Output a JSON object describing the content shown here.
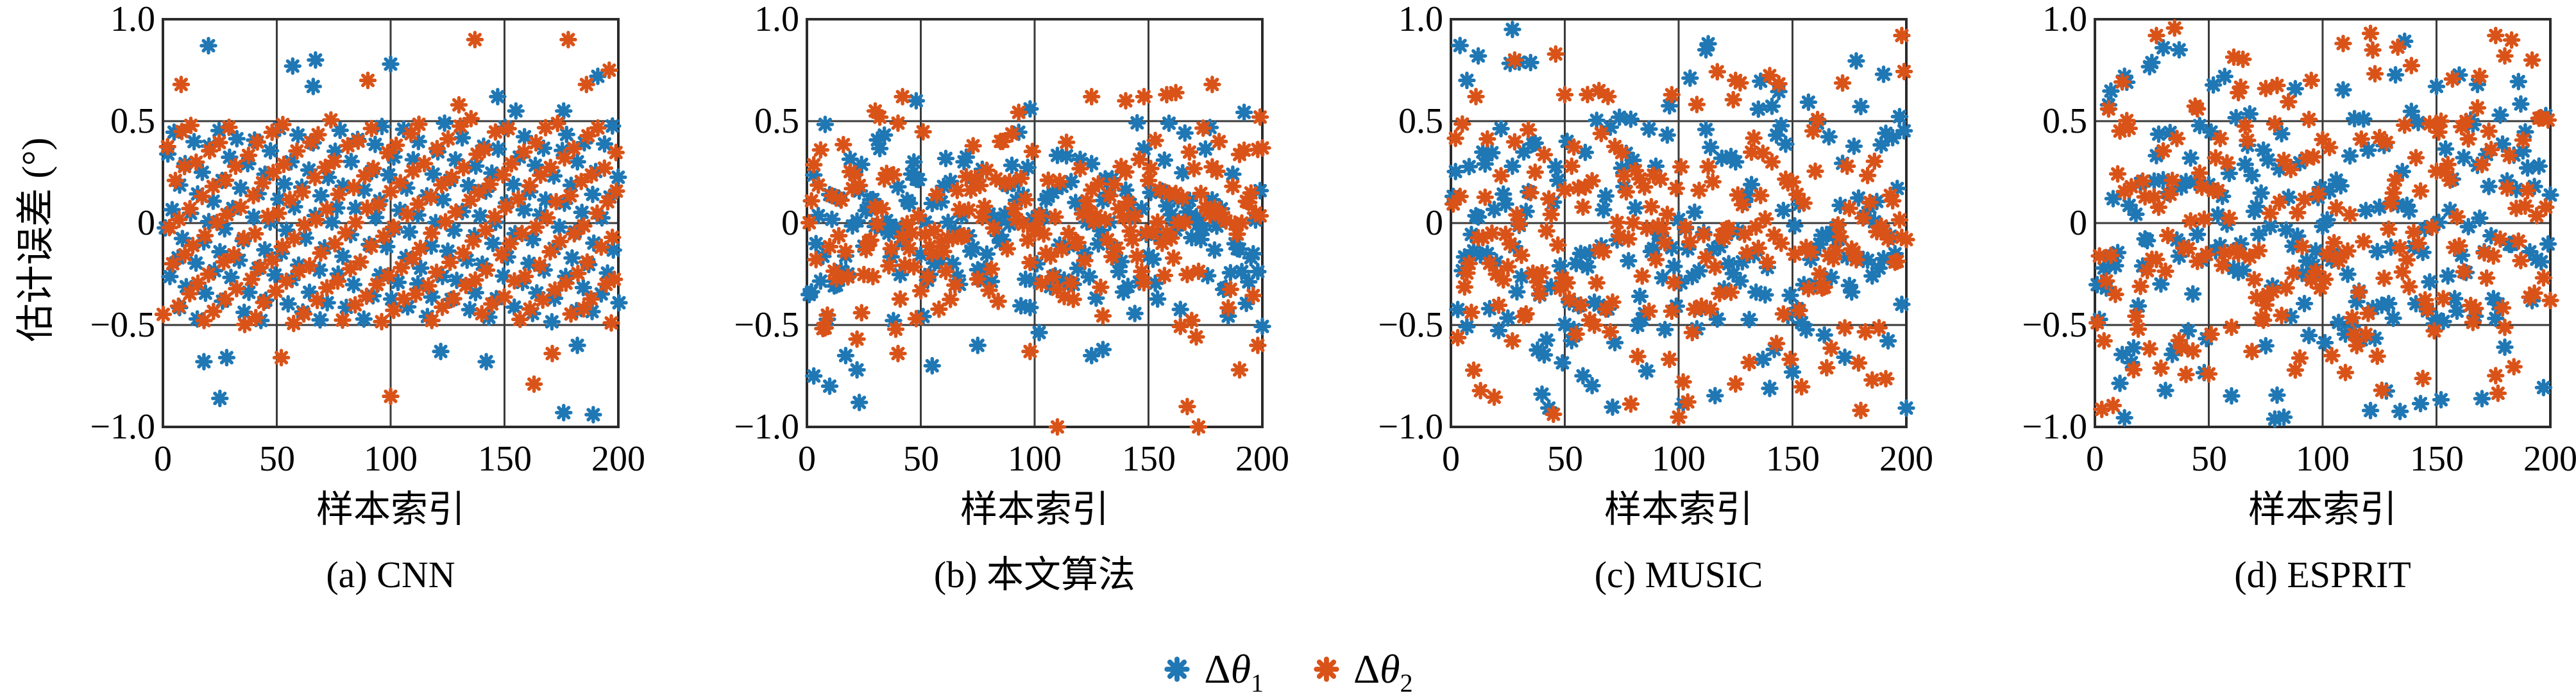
{
  "figure": {
    "ylabel": "估计误差 (°)",
    "background": "#ffffff",
    "colors": {
      "series1": "#1f77b4",
      "series2": "#d95319",
      "grid": "#3a3a3a",
      "frame": "#2b2b2b",
      "text": "#000000"
    },
    "legend": {
      "items": [
        {
          "prefix": "Δ",
          "symbol": "θ",
          "sub": "1",
          "color": "#1f77b4",
          "marker": "asterisk-icon"
        },
        {
          "prefix": "Δ",
          "symbol": "θ",
          "sub": "2",
          "color": "#d95319",
          "marker": "asterisk-icon"
        }
      ]
    }
  },
  "chart_data": [
    {
      "type": "scatter",
      "caption": "(a) CNN",
      "xlabel": "样本索引",
      "ylabel": "估计误差 (°)",
      "xlim": [
        0,
        200
      ],
      "ylim": [
        -1,
        1
      ],
      "grid": true,
      "xticks": [
        0,
        50,
        100,
        150,
        200
      ],
      "yticks": [
        1.0,
        0.5,
        0,
        -0.5,
        -1.0
      ],
      "xtick_labels": [
        "0",
        "50",
        "100",
        "150",
        "200"
      ],
      "ytick_labels": [
        "1.0",
        "0.5",
        "0",
        "−0.5",
        "−1.0"
      ],
      "series": [
        {
          "name": "Δθ1",
          "color": "#1f77b4",
          "n": 200,
          "seed": 11,
          "distribution": {
            "kind": "lattice",
            "min": -0.48,
            "max": 0.49,
            "step": 0.37,
            "phase": 0.1,
            "jitter": 0.02,
            "xjitter": 1.0
          },
          "outliers": [
            [
              20,
              0.87
            ],
            [
              57,
              0.77
            ],
            [
              67,
              0.8
            ],
            [
              66,
              0.67
            ],
            [
              100,
              0.78
            ],
            [
              147,
              0.62
            ],
            [
              155,
              0.55
            ],
            [
              176,
              0.55
            ],
            [
              191,
              0.72
            ],
            [
              18,
              -0.68
            ],
            [
              28,
              -0.66
            ],
            [
              25,
              -0.86
            ],
            [
              122,
              -0.63
            ],
            [
              142,
              -0.68
            ],
            [
              182,
              -0.6
            ],
            [
              176,
              -0.93
            ],
            [
              189,
              -0.94
            ]
          ]
        },
        {
          "name": "Δθ2",
          "color": "#d95319",
          "n": 200,
          "seed": 12,
          "distribution": {
            "kind": "lattice",
            "min": -0.5,
            "max": 0.51,
            "step": 0.41,
            "phase": 0.65,
            "jitter": 0.02,
            "xjitter": 1.0
          },
          "outliers": [
            [
              8,
              0.68
            ],
            [
              90,
              0.7
            ],
            [
              137,
              0.9
            ],
            [
              130,
              0.58
            ],
            [
              178,
              0.9
            ],
            [
              196,
              0.75
            ],
            [
              186,
              0.68
            ],
            [
              52,
              -0.66
            ],
            [
              100,
              -0.85
            ],
            [
              163,
              -0.79
            ],
            [
              171,
              -0.64
            ]
          ]
        }
      ]
    },
    {
      "type": "scatter",
      "caption": "(b) 本文算法",
      "xlabel": "样本索引",
      "xlim": [
        0,
        200
      ],
      "ylim": [
        -1,
        1
      ],
      "grid": true,
      "xticks": [
        0,
        50,
        100,
        150,
        200
      ],
      "yticks": [
        1.0,
        0.5,
        0,
        -0.5,
        -1.0
      ],
      "xtick_labels": [
        "0",
        "50",
        "100",
        "150",
        "200"
      ],
      "ytick_labels": [
        "1.0",
        "0.5",
        "0",
        "−0.5",
        "−1.0"
      ],
      "series": [
        {
          "name": "Δθ1",
          "color": "#1f77b4",
          "n": 200,
          "seed": 21,
          "distribution": {
            "kind": "normal",
            "mean": -0.02,
            "sd": 0.27,
            "clip": 0.58
          },
          "outliers": [
            [
              3,
              -0.75
            ],
            [
              10,
              -0.8
            ],
            [
              17,
              -0.65
            ],
            [
              22,
              -0.72
            ],
            [
              23,
              -0.88
            ],
            [
              55,
              -0.7
            ],
            [
              75,
              -0.6
            ],
            [
              125,
              -0.65
            ],
            [
              130,
              -0.62
            ],
            [
              48,
              0.6
            ],
            [
              98,
              0.56
            ]
          ]
        },
        {
          "name": "Δθ2",
          "color": "#d95319",
          "n": 200,
          "seed": 22,
          "distribution": {
            "kind": "normal",
            "mean": -0.02,
            "sd": 0.27,
            "clip": 0.58
          },
          "outliers": [
            [
              42,
              0.62
            ],
            [
              30,
              0.55
            ],
            [
              125,
              0.62
            ],
            [
              140,
              0.6
            ],
            [
              148,
              0.62
            ],
            [
              158,
              0.63
            ],
            [
              162,
              0.64
            ],
            [
              178,
              0.68
            ],
            [
              199,
              0.52
            ],
            [
              40,
              -0.64
            ],
            [
              98,
              -0.63
            ],
            [
              110,
              -1.0
            ],
            [
              167,
              -0.9
            ],
            [
              172,
              -1.0
            ],
            [
              190,
              -0.72
            ],
            [
              198,
              -0.6
            ]
          ]
        }
      ]
    },
    {
      "type": "scatter",
      "caption": "(c) MUSIC",
      "xlabel": "样本索引",
      "xlim": [
        0,
        200
      ],
      "ylim": [
        -1,
        1
      ],
      "grid": true,
      "xticks": [
        0,
        50,
        100,
        150,
        200
      ],
      "yticks": [
        1.0,
        0.5,
        0,
        -0.5,
        -1.0
      ],
      "xtick_labels": [
        "0",
        "50",
        "100",
        "150",
        "200"
      ],
      "ytick_labels": [
        "1.0",
        "0.5",
        "0",
        "−0.5",
        "−1.0"
      ],
      "series": [
        {
          "name": "Δθ1",
          "color": "#1f77b4",
          "n": 200,
          "seed": 31,
          "distribution": {
            "kind": "normal",
            "mean": -0.08,
            "sd": 0.46,
            "clip": 0.97
          },
          "outliers": [
            [
              27,
              0.95
            ],
            [
              12,
              0.82
            ],
            [
              30,
              0.79
            ],
            [
              7,
              0.7
            ],
            [
              112,
              0.85
            ],
            [
              190,
              0.73
            ]
          ]
        },
        {
          "name": "Δθ2",
          "color": "#d95319",
          "n": 200,
          "seed": 32,
          "distribution": {
            "kind": "normal",
            "mean": -0.08,
            "sd": 0.46,
            "clip": 0.97
          },
          "outliers": [
            [
              28,
              0.8
            ],
            [
              50,
              0.63
            ],
            [
              65,
              0.65
            ],
            [
              97,
              0.63
            ],
            [
              125,
              0.7
            ],
            [
              198,
              0.92
            ]
          ]
        }
      ]
    },
    {
      "type": "scatter",
      "caption": "(d) ESPRIT",
      "xlabel": "样本索引",
      "xlim": [
        0,
        200
      ],
      "ylim": [
        -1,
        1
      ],
      "grid": true,
      "xticks": [
        0,
        50,
        100,
        150,
        200
      ],
      "yticks": [
        1.0,
        0.5,
        0,
        -0.5,
        -1.0
      ],
      "xtick_labels": [
        "0",
        "50",
        "100",
        "150",
        "200"
      ],
      "ytick_labels": [
        "1.0",
        "0.5",
        "0",
        "−0.5",
        "−1.0"
      ],
      "series": [
        {
          "name": "Δθ1",
          "color": "#1f77b4",
          "n": 200,
          "seed": 41,
          "distribution": {
            "kind": "normal",
            "mean": -0.03,
            "sd": 0.48,
            "clip": 0.97
          },
          "outliers": [
            [
              30,
              0.86
            ],
            [
              37,
              0.85
            ],
            [
              13,
              0.72
            ],
            [
              6,
              0.58
            ],
            [
              150,
              0.67
            ],
            [
              168,
              0.68
            ]
          ]
        },
        {
          "name": "Δθ2",
          "color": "#d95319",
          "n": 200,
          "seed": 42,
          "distribution": {
            "kind": "normal",
            "mean": -0.03,
            "sd": 0.48,
            "clip": 0.97
          },
          "outliers": [
            [
              27,
              0.92
            ],
            [
              45,
              0.56
            ],
            [
              63,
              0.64
            ],
            [
              75,
              0.66
            ],
            [
              95,
              0.7
            ],
            [
              176,
              0.92
            ],
            [
              180,
              0.82
            ]
          ]
        }
      ]
    }
  ]
}
